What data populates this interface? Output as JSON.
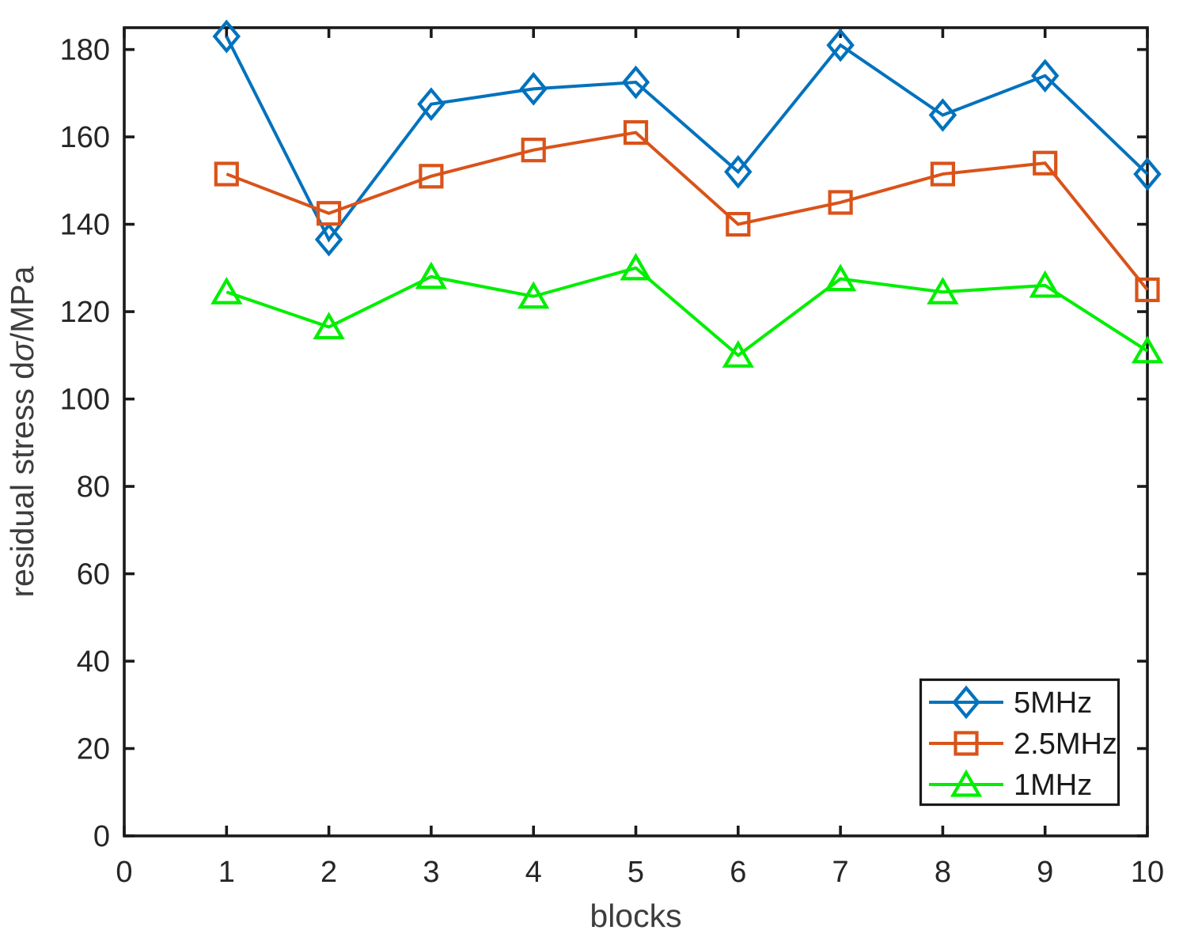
{
  "figure": {
    "background": "#ffffff"
  },
  "colors": {
    "axis": "#1a1a1a",
    "tick_label": "#262626",
    "axis_label": "#3d3d3d",
    "legend_text": "#1a1a1a",
    "legend_border": "#1a1a1a",
    "series_blue": "#0072BD",
    "series_orange": "#D95319",
    "series_green": "#00EE00"
  },
  "chart_data": {
    "type": "line",
    "title": "",
    "x": [
      1,
      2,
      3,
      4,
      5,
      6,
      7,
      8,
      9,
      10
    ],
    "series": [
      {
        "name": "5MHz",
        "color": "#0072BD",
        "marker": "diamond",
        "values": [
          183,
          136.5,
          167.5,
          171,
          172.5,
          152,
          181,
          165,
          174,
          151.5
        ]
      },
      {
        "name": "2.5MHz",
        "color": "#D95319",
        "marker": "square",
        "values": [
          151.5,
          142.5,
          151,
          157,
          161,
          140,
          145,
          151.5,
          154,
          125
        ]
      },
      {
        "name": "1MHz",
        "color": "#00EE00",
        "marker": "triangle",
        "values": [
          124.5,
          116.5,
          128,
          123.5,
          130,
          110,
          127.5,
          124.5,
          126,
          111
        ]
      }
    ],
    "xlabel": "blocks",
    "ylabel": "residual stress dσ/MPa",
    "ylabel_parts": {
      "prefix": "residual stress d",
      "sigma": "σ",
      "suffix": "/MPa"
    },
    "xlim": [
      0,
      10
    ],
    "ylim": [
      0,
      185
    ],
    "xticks": [
      0,
      1,
      2,
      3,
      4,
      5,
      6,
      7,
      8,
      9,
      10
    ],
    "yticks": [
      0,
      20,
      40,
      60,
      80,
      100,
      120,
      140,
      160,
      180
    ],
    "grid": false,
    "legend": {
      "position": "inside-lower-right",
      "entries": [
        "5MHz",
        "2.5MHz",
        "1MHz"
      ]
    }
  }
}
